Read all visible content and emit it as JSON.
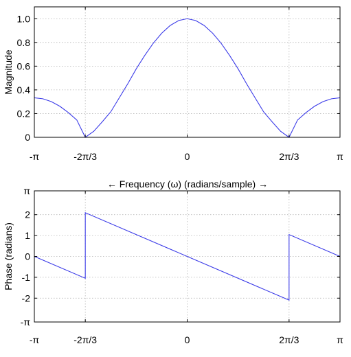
{
  "chart_data": [
    {
      "type": "line",
      "title": "",
      "xlabel": "",
      "ylabel": "Magnitude",
      "xlim": [
        -3.14159,
        3.14159
      ],
      "ylim": [
        0,
        1.1
      ],
      "grid": true,
      "x_ticks": [
        {
          "value": -3.14159,
          "label": "-π"
        },
        {
          "value": -2.0944,
          "label": "-2π/3"
        },
        {
          "value": 0,
          "label": "0"
        },
        {
          "value": 2.0944,
          "label": "2π/3"
        },
        {
          "value": 3.14159,
          "label": "π"
        }
      ],
      "y_ticks": [
        {
          "value": 0,
          "label": "0"
        },
        {
          "value": 0.2,
          "label": "0.2"
        },
        {
          "value": 0.4,
          "label": "0.4"
        },
        {
          "value": 0.6,
          "label": "0.6"
        },
        {
          "value": 0.8,
          "label": "0.8"
        },
        {
          "value": 1.0,
          "label": "1.0"
        }
      ],
      "series": [
        {
          "color": "#3a3ae8",
          "x": [
            -3.1416,
            -2.9671,
            -2.7925,
            -2.618,
            -2.4435,
            -2.2689,
            -2.0944,
            -1.9199,
            -1.7453,
            -1.5708,
            -1.3963,
            -1.2217,
            -1.0472,
            -0.8727,
            -0.6981,
            -0.5236,
            -0.3491,
            -0.1745,
            0,
            0.1745,
            0.3491,
            0.5236,
            0.6981,
            0.8727,
            1.0472,
            1.2217,
            1.3963,
            1.5708,
            1.7453,
            1.9199,
            2.0944,
            2.2689,
            2.4435,
            2.618,
            2.7925,
            2.9671,
            3.1416
          ],
          "y": [
            0.333,
            0.325,
            0.301,
            0.262,
            0.209,
            0.146,
            0.0,
            0.051,
            0.131,
            0.215,
            0.333,
            0.451,
            0.577,
            0.69,
            0.793,
            0.878,
            0.943,
            0.985,
            1.0,
            0.985,
            0.943,
            0.878,
            0.793,
            0.69,
            0.577,
            0.451,
            0.333,
            0.215,
            0.131,
            0.051,
            0.0,
            0.146,
            0.209,
            0.262,
            0.301,
            0.325,
            0.333
          ]
        }
      ]
    },
    {
      "type": "line",
      "title": "← Frequency (ω) (radians/sample) →",
      "xlabel": "",
      "ylabel": "Phase (radians)",
      "xlim": [
        -3.14159,
        3.14159
      ],
      "ylim": [
        -3.14159,
        3.14159
      ],
      "grid": true,
      "x_ticks": [
        {
          "value": -3.14159,
          "label": "-π"
        },
        {
          "value": -2.0944,
          "label": "-2π/3"
        },
        {
          "value": 0,
          "label": "0"
        },
        {
          "value": 2.0944,
          "label": "2π/3"
        },
        {
          "value": 3.14159,
          "label": "π"
        }
      ],
      "y_ticks": [
        {
          "value": -3.14159,
          "label": "-π"
        },
        {
          "value": -2,
          "label": "-2"
        },
        {
          "value": -1,
          "label": "-1"
        },
        {
          "value": 0,
          "label": "0"
        },
        {
          "value": 1,
          "label": "1"
        },
        {
          "value": 2,
          "label": "2"
        },
        {
          "value": 3.14159,
          "label": "π"
        }
      ],
      "series": [
        {
          "color": "#3a3ae8",
          "x": [
            -3.14159,
            -2.0944,
            -2.0944,
            2.0944,
            2.0944,
            3.14159
          ],
          "y": [
            0,
            -1.047,
            2.094,
            -2.094,
            1.047,
            0
          ]
        }
      ]
    }
  ]
}
